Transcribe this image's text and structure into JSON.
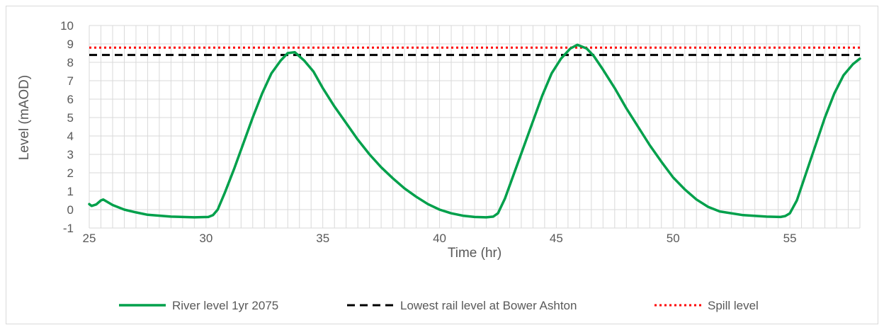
{
  "chart_data": {
    "type": "line",
    "title": "",
    "xlabel": "Time (hr)",
    "ylabel": "Level (mAOD)",
    "xlim": [
      25,
      58
    ],
    "ylim": [
      -1,
      10
    ],
    "xticks": [
      "25",
      "30",
      "35",
      "40",
      "45",
      "50",
      "55"
    ],
    "yticks": [
      "-1",
      "0",
      "1",
      "2",
      "3",
      "4",
      "5",
      "6",
      "7",
      "8",
      "9",
      "10"
    ],
    "grid": true,
    "legend_position": "bottom",
    "series": [
      {
        "name": "River level 1yr 2075",
        "color": "#00a04b",
        "style": "solid",
        "x": [
          25.0,
          25.1,
          25.3,
          25.5,
          25.6,
          25.8,
          26.0,
          26.5,
          27.0,
          27.5,
          28.5,
          29.5,
          30.1,
          30.3,
          30.5,
          30.8,
          31.2,
          31.6,
          32.0,
          32.4,
          32.8,
          33.2,
          33.5,
          33.8,
          34.2,
          34.6,
          35.0,
          35.5,
          36.0,
          36.5,
          37.0,
          37.5,
          38.0,
          38.5,
          39.0,
          39.5,
          40.0,
          40.5,
          41.0,
          41.5,
          42.0,
          42.3,
          42.5,
          42.8,
          43.2,
          43.6,
          44.0,
          44.4,
          44.8,
          45.2,
          45.6,
          45.9,
          46.3,
          46.6,
          47.0,
          47.5,
          48.0,
          48.5,
          49.0,
          49.5,
          50.0,
          50.5,
          51.0,
          51.5,
          52.0,
          53.0,
          54.0,
          54.6,
          54.8,
          55.0,
          55.3,
          55.7,
          56.1,
          56.5,
          56.9,
          57.3,
          57.7,
          58.0
        ],
        "values": [
          0.3,
          0.2,
          0.28,
          0.5,
          0.55,
          0.4,
          0.25,
          0.0,
          -0.15,
          -0.28,
          -0.38,
          -0.42,
          -0.4,
          -0.3,
          0.0,
          0.9,
          2.2,
          3.6,
          5.0,
          6.3,
          7.4,
          8.1,
          8.5,
          8.55,
          8.1,
          7.5,
          6.6,
          5.6,
          4.7,
          3.8,
          3.0,
          2.3,
          1.7,
          1.15,
          0.7,
          0.3,
          0.0,
          -0.2,
          -0.33,
          -0.4,
          -0.42,
          -0.38,
          -0.2,
          0.6,
          2.0,
          3.4,
          4.8,
          6.2,
          7.4,
          8.2,
          8.75,
          8.95,
          8.75,
          8.35,
          7.6,
          6.6,
          5.5,
          4.5,
          3.5,
          2.6,
          1.75,
          1.1,
          0.55,
          0.15,
          -0.1,
          -0.3,
          -0.38,
          -0.4,
          -0.35,
          -0.2,
          0.5,
          2.0,
          3.5,
          5.0,
          6.3,
          7.3,
          7.9,
          8.2
        ]
      },
      {
        "name": "Lowest rail level at Bower Ashton",
        "color": "#000000",
        "style": "dashed",
        "x": [
          25,
          58
        ],
        "values": [
          8.4,
          8.4
        ]
      },
      {
        "name": "Spill level",
        "color": "#ff0000",
        "style": "dotted",
        "x": [
          25,
          58
        ],
        "values": [
          8.8,
          8.8
        ]
      }
    ]
  }
}
